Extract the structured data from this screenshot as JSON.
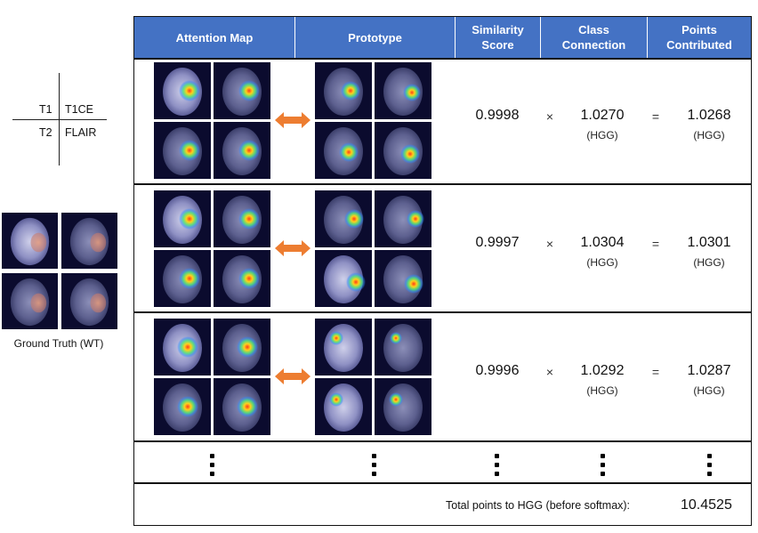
{
  "legend": {
    "t1": "T1",
    "t1ce": "T1CE",
    "t2": "T2",
    "flair": "FLAIR",
    "ground_truth_caption": "Ground Truth (WT)"
  },
  "table": {
    "headers": {
      "attention_map": "Attention Map",
      "prototype": "Prototype",
      "similarity_line1": "Similarity",
      "similarity_line2": "Score",
      "class_line1": "Class",
      "class_line2": "Connection",
      "points_line1": "Points",
      "points_line2": "Contributed"
    },
    "rows": [
      {
        "similarity": "0.9998",
        "times": "×",
        "connection": "1.0270",
        "connection_class": "(HGG)",
        "equals": "=",
        "points": "1.0268",
        "points_class": "(HGG)"
      },
      {
        "similarity": "0.9997",
        "times": "×",
        "connection": "1.0304",
        "connection_class": "(HGG)",
        "equals": "=",
        "points": "1.0301",
        "points_class": "(HGG)"
      },
      {
        "similarity": "0.9996",
        "times": "×",
        "connection": "1.0292",
        "connection_class": "(HGG)",
        "equals": "=",
        "points": "1.0287",
        "points_class": "(HGG)"
      }
    ],
    "total_label": "Total points to HGG (before softmax):",
    "total_value": "10.4525"
  },
  "colors": {
    "header_bg": "#4472c4",
    "arrow": "#ed7d31",
    "scan_bg": "#0b0b2e"
  },
  "icons": {
    "arrow": "double-headed-arrow-icon",
    "ellipsis": "vertical-ellipsis-icon"
  }
}
